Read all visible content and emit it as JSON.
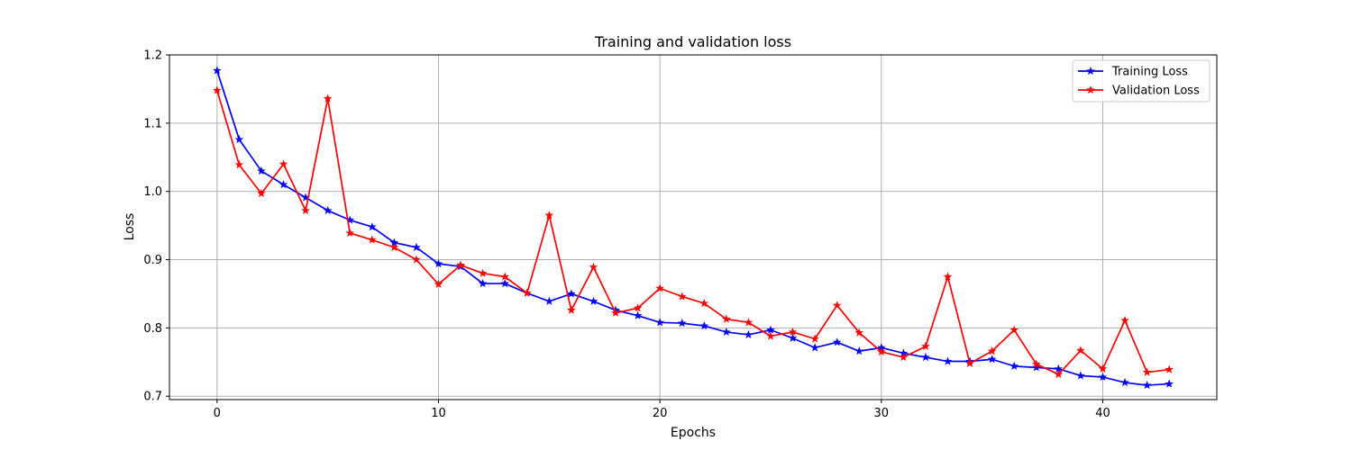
{
  "chart_data": {
    "type": "line",
    "title": "Training and validation loss",
    "xlabel": "Epochs",
    "ylabel": "Loss",
    "xlim": [
      -2.15,
      45.15
    ],
    "ylim": [
      0.695,
      1.2
    ],
    "xticks": [
      0,
      10,
      20,
      30,
      40
    ],
    "yticks": [
      0.7,
      0.8,
      0.9,
      1.0,
      1.1,
      1.2
    ],
    "ytick_labels": [
      "0.7",
      "0.8",
      "0.9",
      "1.0",
      "1.1",
      "1.2"
    ],
    "grid": true,
    "legend_position": "top-right",
    "x": [
      0,
      1,
      2,
      3,
      4,
      5,
      6,
      7,
      8,
      9,
      10,
      11,
      12,
      13,
      14,
      15,
      16,
      17,
      18,
      19,
      20,
      21,
      22,
      23,
      24,
      25,
      26,
      27,
      28,
      29,
      30,
      31,
      32,
      33,
      34,
      35,
      36,
      37,
      38,
      39,
      40,
      41,
      42,
      43
    ],
    "series": [
      {
        "name": "Training Loss",
        "color": "#0000ff",
        "marker": "star",
        "values": [
          1.177,
          1.076,
          1.03,
          1.01,
          0.991,
          0.972,
          0.958,
          0.948,
          0.925,
          0.918,
          0.894,
          0.89,
          0.865,
          0.865,
          0.851,
          0.839,
          0.85,
          0.839,
          0.826,
          0.818,
          0.808,
          0.807,
          0.803,
          0.794,
          0.79,
          0.797,
          0.785,
          0.771,
          0.779,
          0.766,
          0.771,
          0.763,
          0.757,
          0.751,
          0.751,
          0.754,
          0.744,
          0.742,
          0.74,
          0.73,
          0.728,
          0.72,
          0.716,
          0.718
        ]
      },
      {
        "name": "Validation Loss",
        "color": "#ff0000",
        "marker": "star",
        "values": [
          1.148,
          1.039,
          0.997,
          1.04,
          0.972,
          1.136,
          0.939,
          0.929,
          0.918,
          0.9,
          0.864,
          0.892,
          0.88,
          0.875,
          0.851,
          0.965,
          0.826,
          0.889,
          0.822,
          0.829,
          0.858,
          0.846,
          0.836,
          0.813,
          0.808,
          0.788,
          0.794,
          0.784,
          0.833,
          0.793,
          0.765,
          0.757,
          0.773,
          0.875,
          0.748,
          0.766,
          0.797,
          0.747,
          0.732,
          0.767,
          0.74,
          0.811,
          0.735,
          0.739
        ]
      }
    ]
  }
}
